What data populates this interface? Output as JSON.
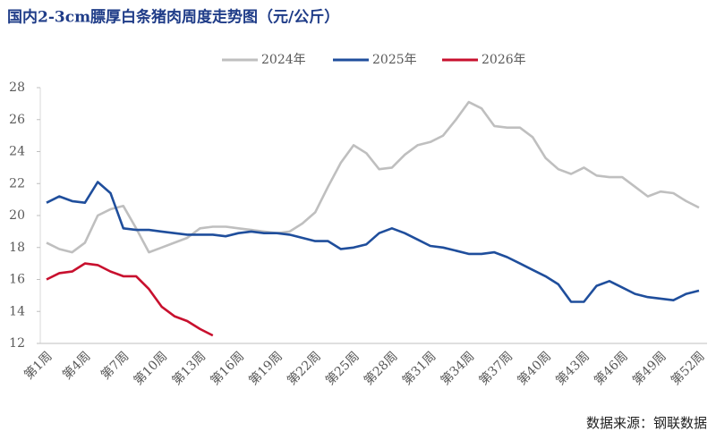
{
  "chart_data": {
    "type": "line",
    "title": "国内2-3cm膘厚白条猪肉周度走势图（元/公斤）",
    "source": "数据来源：钢联数据",
    "categories": [
      "第1周",
      null,
      null,
      "第4周",
      null,
      null,
      "第7周",
      null,
      null,
      "第10周",
      null,
      null,
      "第13周",
      null,
      null,
      "第16周",
      null,
      null,
      "第19周",
      null,
      null,
      "第22周",
      null,
      null,
      "第25周",
      null,
      null,
      "第28周",
      null,
      null,
      "第31周",
      null,
      null,
      "第34周",
      null,
      null,
      "第37周",
      null,
      null,
      "第40周",
      null,
      null,
      "第43周",
      null,
      null,
      "第46周",
      null,
      null,
      "第49周",
      null,
      null,
      "第52周"
    ],
    "series": [
      {
        "name": "2024年",
        "color": "#bfbfbf",
        "values": [
          18.3,
          17.9,
          17.7,
          18.3,
          20.0,
          20.4,
          20.6,
          19.2,
          17.7,
          18.0,
          18.3,
          18.6,
          19.2,
          19.3,
          19.3,
          19.2,
          19.1,
          19.0,
          18.9,
          19.0,
          19.5,
          20.2,
          21.8,
          23.3,
          24.4,
          23.9,
          22.9,
          23.0,
          23.8,
          24.4,
          24.6,
          25.0,
          26.0,
          27.1,
          26.7,
          25.6,
          25.5,
          25.5,
          24.9,
          23.6,
          22.9,
          22.6,
          23.0,
          22.5,
          22.4,
          22.4,
          21.8,
          21.2,
          21.5,
          21.4,
          20.9,
          20.5
        ]
      },
      {
        "name": "2025年",
        "color": "#1f4e9c",
        "values": [
          20.8,
          21.2,
          20.9,
          20.8,
          22.1,
          21.4,
          19.2,
          19.1,
          19.1,
          19.0,
          18.9,
          18.8,
          18.8,
          18.8,
          18.7,
          18.9,
          19.0,
          18.9,
          18.9,
          18.8,
          18.6,
          18.4,
          18.4,
          17.9,
          18.0,
          18.2,
          18.9,
          19.2,
          18.9,
          18.5,
          18.1,
          18.0,
          17.8,
          17.6,
          17.6,
          17.7,
          17.4,
          17.0,
          16.6,
          16.2,
          15.7,
          14.6,
          14.6,
          15.6,
          15.9,
          15.5,
          15.1,
          14.9,
          14.8,
          14.7,
          15.1,
          15.3
        ]
      },
      {
        "name": "2026年",
        "color": "#c8102e",
        "values": [
          16.0,
          16.4,
          16.5,
          17.0,
          16.9,
          16.5,
          16.2,
          16.2,
          15.4,
          14.3,
          13.7,
          13.4,
          12.9,
          12.5,
          null,
          null,
          null,
          null,
          null,
          null,
          null,
          null,
          null,
          null,
          null,
          null,
          null,
          null,
          null,
          null,
          null,
          null,
          null,
          null,
          null,
          null,
          null,
          null,
          null,
          null,
          null,
          null,
          null,
          null,
          null,
          null,
          null,
          null,
          null,
          null,
          null,
          null
        ]
      }
    ],
    "ylim": [
      12,
      28
    ],
    "yticks": [
      12,
      14,
      16,
      18,
      20,
      22,
      24,
      26,
      28
    ]
  }
}
